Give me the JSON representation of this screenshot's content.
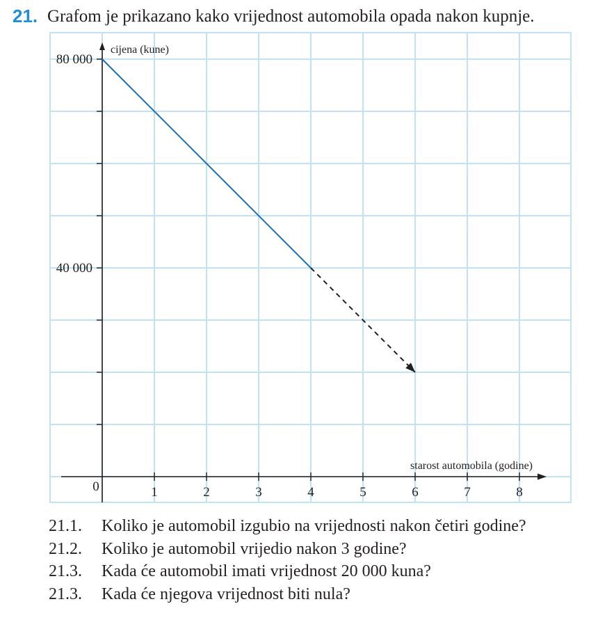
{
  "task": {
    "number": "21.",
    "text": "Grafom je prikazano kako vrijednost automobila opada nakon kupnje."
  },
  "chart_data": {
    "type": "line",
    "ylabel": "cijena (kune)",
    "xlabel": "starost automobila (godine)",
    "origin_label": "0",
    "xlim": [
      -0.8,
      8.9
    ],
    "ylim": [
      -5000,
      85000
    ],
    "grid": true,
    "x_ticks": [
      1,
      2,
      3,
      4,
      5,
      6,
      7,
      8
    ],
    "x_tick_labels": [
      "1",
      "2",
      "3",
      "4",
      "5",
      "6",
      "7",
      "8"
    ],
    "y_tick_values": [
      10000,
      20000,
      30000,
      40000,
      50000,
      60000,
      70000,
      80000
    ],
    "y_tick_labels": [
      {
        "value": 40000,
        "label": "40 000"
      },
      {
        "value": 80000,
        "label": "80 000"
      }
    ],
    "series": [
      {
        "style": "solid",
        "color": "#1a6fb5",
        "x": [
          0,
          4
        ],
        "y": [
          80000,
          40000
        ]
      },
      {
        "style": "dashed",
        "color": "#231f20",
        "x": [
          4,
          6
        ],
        "y": [
          40000,
          20000
        ],
        "arrow": true
      }
    ],
    "colors": {
      "grid": "#bfe3f2",
      "axis": "#231f20",
      "accent": "#1f8fcf"
    }
  },
  "questions": [
    {
      "number": "21.1.",
      "text": "Koliko je automobil izgubio na vrijednosti nakon četiri godine?"
    },
    {
      "number": "21.2.",
      "text": "Koliko je automobil vrijedio nakon 3 godine?"
    },
    {
      "number": "21.3.",
      "text": "Kada će automobil imati vrijednost 20 000 kuna?"
    },
    {
      "number": "21.3.",
      "text": "Kada će njegova vrijednost biti nula?"
    }
  ]
}
